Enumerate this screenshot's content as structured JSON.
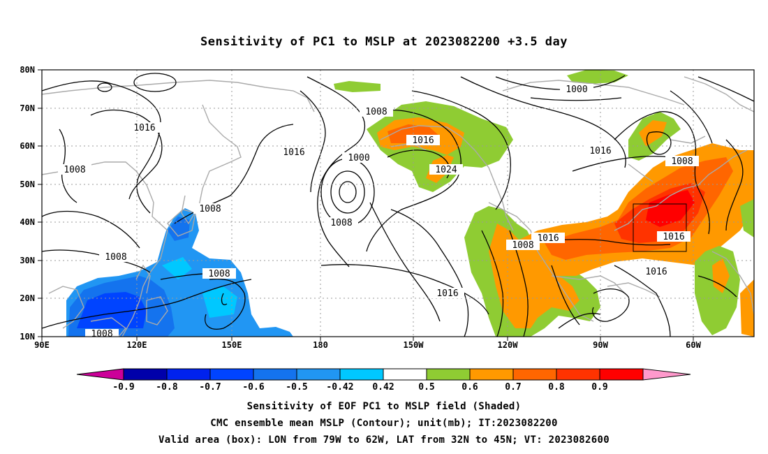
{
  "title": "Sensitivity of PC1 to MSLP at 2023082200 +3.5 day",
  "lat_labels": [
    "80N",
    "70N",
    "60N",
    "50N",
    "40N",
    "30N",
    "20N",
    "10N"
  ],
  "lon_labels": [
    "90E",
    "120E",
    "150E",
    "180",
    "150W",
    "120W",
    "90W",
    "60W"
  ],
  "contour_labels": [
    {
      "text": "1000"
    },
    {
      "text": "1008"
    },
    {
      "text": "1016"
    },
    {
      "text": "1000"
    },
    {
      "text": "1016"
    },
    {
      "text": "1024"
    },
    {
      "text": "1016"
    },
    {
      "text": "1008"
    },
    {
      "text": "1016"
    },
    {
      "text": "1008"
    },
    {
      "text": "1008"
    },
    {
      "text": "1008"
    },
    {
      "text": "1016"
    },
    {
      "text": "1008"
    },
    {
      "text": "1008"
    },
    {
      "text": "1016"
    },
    {
      "text": "1008"
    },
    {
      "text": "1016"
    },
    {
      "text": "1016"
    },
    {
      "text": "1008"
    }
  ],
  "colorbar": {
    "labels": [
      "-0.9",
      "-0.8",
      "-0.7",
      "-0.6",
      "-0.5",
      "-0.42",
      "0.42",
      "0.5",
      "0.6",
      "0.7",
      "0.8",
      "0.9"
    ],
    "colors": [
      "#0000aa",
      "#0022ee",
      "#0044ff",
      "#1473ee",
      "#2196f3",
      "#00c8ff",
      "#ffffff",
      "#8fcc33",
      "#ff9900",
      "#ff6600",
      "#ff3300",
      "#ff0000"
    ],
    "low_extension_color": "#cc0099",
    "high_extension_color": "#ff99cc"
  },
  "captions": [
    "Sensitivity of EOF PC1 to MSLP field (Shaded)",
    "CMC ensemble mean MSLP (Contour); unit(mb); IT:2023082200",
    "Valid area (box): LON from 79W to 62W, LAT from 32N to 45N; VT: 2023082600"
  ]
}
